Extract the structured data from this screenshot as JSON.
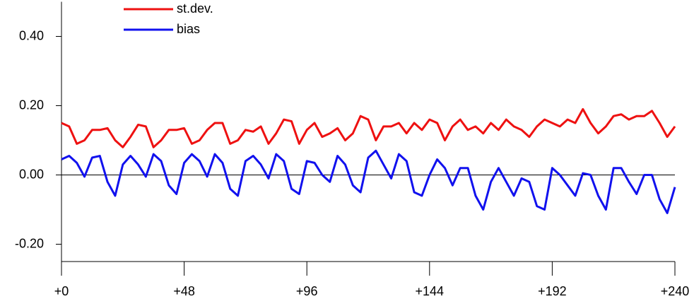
{
  "chart_data": {
    "type": "line",
    "x": [
      0,
      3,
      6,
      9,
      12,
      15,
      18,
      21,
      24,
      27,
      30,
      33,
      36,
      39,
      42,
      45,
      48,
      51,
      54,
      57,
      60,
      63,
      66,
      69,
      72,
      75,
      78,
      81,
      84,
      87,
      90,
      93,
      96,
      99,
      102,
      105,
      108,
      111,
      114,
      117,
      120,
      123,
      126,
      129,
      132,
      135,
      138,
      141,
      144,
      147,
      150,
      153,
      156,
      159,
      162,
      165,
      168,
      171,
      174,
      177,
      180,
      183,
      186,
      189,
      192,
      195,
      198,
      201,
      204,
      207,
      210,
      213,
      216,
      219,
      222,
      225,
      228,
      231,
      234,
      237,
      240
    ],
    "series": [
      {
        "name": "st.dev.",
        "color": "#ee1111",
        "values": [
          0.15,
          0.14,
          0.09,
          0.1,
          0.13,
          0.13,
          0.135,
          0.1,
          0.08,
          0.11,
          0.145,
          0.14,
          0.08,
          0.1,
          0.13,
          0.13,
          0.135,
          0.09,
          0.1,
          0.13,
          0.15,
          0.15,
          0.09,
          0.1,
          0.13,
          0.125,
          0.14,
          0.09,
          0.12,
          0.16,
          0.155,
          0.09,
          0.13,
          0.15,
          0.11,
          0.12,
          0.135,
          0.1,
          0.12,
          0.17,
          0.16,
          0.1,
          0.14,
          0.14,
          0.15,
          0.12,
          0.15,
          0.13,
          0.16,
          0.15,
          0.1,
          0.14,
          0.16,
          0.13,
          0.14,
          0.12,
          0.15,
          0.13,
          0.16,
          0.14,
          0.13,
          0.11,
          0.14,
          0.16,
          0.15,
          0.14,
          0.16,
          0.15,
          0.19,
          0.15,
          0.12,
          0.14,
          0.17,
          0.175,
          0.16,
          0.17,
          0.17,
          0.185,
          0.15,
          0.11,
          0.14
        ]
      },
      {
        "name": "bias",
        "color": "#1111ee",
        "values": [
          0.045,
          0.055,
          0.035,
          -0.005,
          0.05,
          0.055,
          -0.02,
          -0.06,
          0.03,
          0.055,
          0.03,
          -0.005,
          0.06,
          0.04,
          -0.03,
          -0.055,
          0.035,
          0.06,
          0.04,
          -0.005,
          0.06,
          0.035,
          -0.04,
          -0.06,
          0.04,
          0.055,
          0.03,
          -0.01,
          0.06,
          0.04,
          -0.04,
          -0.055,
          0.04,
          0.035,
          0.0,
          -0.02,
          0.055,
          0.03,
          -0.03,
          -0.05,
          0.05,
          0.07,
          0.03,
          -0.01,
          0.06,
          0.04,
          -0.05,
          -0.06,
          0.0,
          0.045,
          0.02,
          -0.03,
          0.02,
          0.02,
          -0.06,
          -0.1,
          -0.02,
          0.02,
          -0.02,
          -0.06,
          -0.01,
          -0.02,
          -0.09,
          -0.1,
          0.02,
          0.0,
          -0.03,
          -0.06,
          0.005,
          0.0,
          -0.06,
          -0.1,
          0.02,
          0.02,
          -0.02,
          -0.055,
          0.0,
          0.0,
          -0.07,
          -0.11,
          -0.035
        ]
      }
    ],
    "xlim": [
      0,
      240
    ],
    "xticks": [
      {
        "value": 0,
        "label": "+0"
      },
      {
        "value": 48,
        "label": "+48"
      },
      {
        "value": 96,
        "label": "+96"
      },
      {
        "value": 144,
        "label": "+144"
      },
      {
        "value": 192,
        "label": "+192"
      },
      {
        "value": 240,
        "label": "+240"
      }
    ],
    "ylim": [
      -0.25,
      0.5
    ],
    "yticks": [
      {
        "value": -0.2,
        "label": "-0.20"
      },
      {
        "value": 0,
        "label": "0.00"
      },
      {
        "value": 0.2,
        "label": "0.20"
      },
      {
        "value": 0.4,
        "label": "0.40"
      }
    ],
    "zero_line": true
  }
}
